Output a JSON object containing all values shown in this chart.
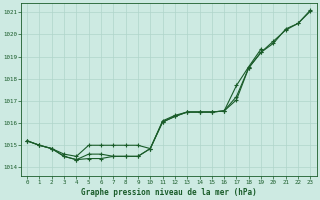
{
  "title": "Graphe pression niveau de la mer (hPa)",
  "background_color": "#cdeae2",
  "grid_color": "#b0d5ca",
  "line_color": "#1a5c2a",
  "xlim": [
    -0.5,
    23.5
  ],
  "ylim": [
    1013.6,
    1021.4
  ],
  "yticks": [
    1014,
    1015,
    1016,
    1017,
    1018,
    1019,
    1020,
    1021
  ],
  "xticks": [
    0,
    1,
    2,
    3,
    4,
    5,
    6,
    7,
    8,
    9,
    10,
    11,
    12,
    13,
    14,
    15,
    16,
    17,
    18,
    19,
    20,
    21,
    22,
    23
  ],
  "series1": [
    1015.2,
    1015.0,
    1014.85,
    1014.6,
    1014.5,
    1015.0,
    1015.0,
    1015.0,
    1015.0,
    1015.0,
    1014.85,
    1016.1,
    1016.35,
    1016.5,
    1016.5,
    1016.5,
    1016.55,
    1017.2,
    1018.5,
    1019.2,
    1019.7,
    1020.2,
    1020.5,
    1021.1
  ],
  "series2": [
    1015.2,
    1015.0,
    1014.85,
    1014.5,
    1014.35,
    1014.4,
    1014.4,
    1014.5,
    1014.5,
    1014.5,
    1014.85,
    1016.05,
    1016.3,
    1016.5,
    1016.5,
    1016.5,
    1016.55,
    1017.7,
    1018.55,
    1019.35,
    null,
    null,
    null,
    null
  ],
  "series3": [
    1015.2,
    1015.0,
    1014.85,
    1014.5,
    1014.35,
    1014.6,
    1014.6,
    1014.5,
    1014.5,
    1014.5,
    1014.85,
    1016.05,
    1016.3,
    1016.5,
    1016.5,
    1016.5,
    1016.55,
    1017.05,
    1018.5,
    1019.2,
    1019.6,
    1020.25,
    1020.5,
    1021.05
  ]
}
